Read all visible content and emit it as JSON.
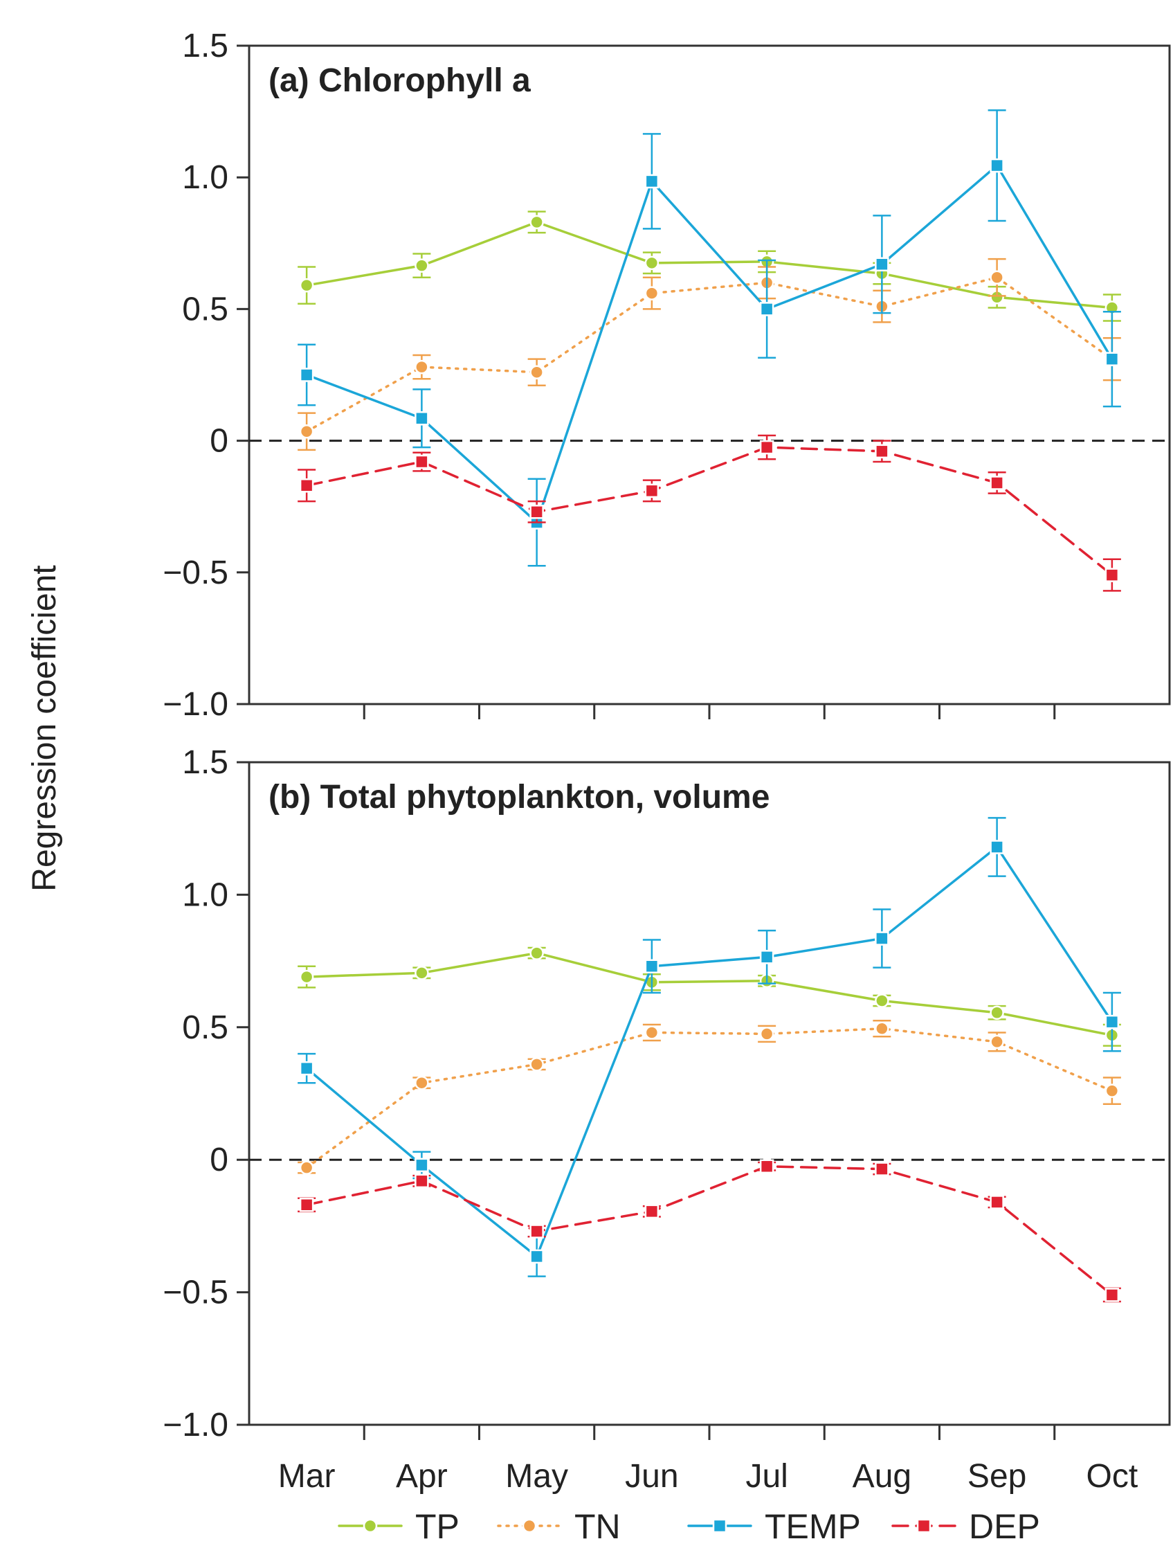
{
  "chart_data": {
    "type": "line",
    "ylabel": "Regression coefficient",
    "categories": [
      "Mar",
      "Apr",
      "May",
      "Jun",
      "Jul",
      "Aug",
      "Sep",
      "Oct"
    ],
    "ylim": [
      -1.0,
      1.5
    ],
    "yticks": [
      {
        "value": 1.5,
        "label": "1.5"
      },
      {
        "value": 1.0,
        "label": "1.0"
      },
      {
        "value": 0.5,
        "label": "0.5"
      },
      {
        "value": 0,
        "label": "0"
      },
      {
        "value": -0.5,
        "label": "−0.5"
      },
      {
        "value": -1.0,
        "label": "−1.0"
      }
    ],
    "zero_line": true,
    "legend": {
      "position": "bottom"
    },
    "series_styles": [
      {
        "name": "TP",
        "color": "#a6ce39",
        "marker": "circle",
        "dash": "solid"
      },
      {
        "name": "TN",
        "color": "#f0a04b",
        "marker": "circle",
        "dash": "dotted"
      },
      {
        "name": "TEMP",
        "color": "#1ba6d8",
        "marker": "square",
        "dash": "solid"
      },
      {
        "name": "DEP",
        "color": "#e02232",
        "marker": "square",
        "dash": "dashed"
      }
    ],
    "panels": [
      {
        "title": "(a) Chlorophyll a",
        "series": [
          {
            "name": "TP",
            "values": [
              0.59,
              0.665,
              0.83,
              0.675,
              0.68,
              0.635,
              0.545,
              0.505
            ],
            "errors": [
              0.07,
              0.045,
              0.04,
              0.04,
              0.04,
              0.04,
              0.04,
              0.05
            ]
          },
          {
            "name": "TN",
            "values": [
              0.035,
              0.28,
              0.26,
              0.56,
              0.6,
              0.51,
              0.62,
              0.31
            ],
            "errors": [
              0.07,
              0.045,
              0.05,
              0.06,
              0.06,
              0.06,
              0.07,
              0.08
            ]
          },
          {
            "name": "TEMP",
            "values": [
              0.25,
              0.085,
              -0.31,
              0.985,
              0.5,
              0.67,
              1.045,
              0.31
            ],
            "errors": [
              0.115,
              0.11,
              0.165,
              0.18,
              0.185,
              0.185,
              0.21,
              0.18
            ]
          },
          {
            "name": "DEP",
            "values": [
              -0.17,
              -0.08,
              -0.27,
              -0.19,
              -0.025,
              -0.04,
              -0.16,
              -0.51
            ],
            "errors": [
              0.06,
              0.035,
              0.04,
              0.04,
              0.045,
              0.04,
              0.04,
              0.06
            ]
          }
        ]
      },
      {
        "title": "(b) Total phytoplankton, volume",
        "series": [
          {
            "name": "TP",
            "values": [
              0.69,
              0.705,
              0.78,
              0.67,
              0.675,
              0.6,
              0.555,
              0.47
            ],
            "errors": [
              0.04,
              0.02,
              0.02,
              0.03,
              0.02,
              0.02,
              0.025,
              0.04
            ]
          },
          {
            "name": "TN",
            "values": [
              -0.03,
              0.29,
              0.36,
              0.48,
              0.475,
              0.495,
              0.445,
              0.26
            ],
            "errors": [
              0.02,
              0.02,
              0.02,
              0.03,
              0.03,
              0.03,
              0.035,
              0.05
            ]
          },
          {
            "name": "TEMP",
            "values": [
              0.345,
              -0.02,
              -0.365,
              0.73,
              0.765,
              0.835,
              1.18,
              0.52
            ],
            "errors": [
              0.055,
              0.05,
              0.075,
              0.1,
              0.1,
              0.11,
              0.11,
              0.11
            ]
          },
          {
            "name": "DEP",
            "values": [
              -0.17,
              -0.08,
              -0.27,
              -0.195,
              -0.025,
              -0.035,
              -0.16,
              -0.51
            ],
            "errors": [
              0.025,
              0.02,
              0.02,
              0.02,
              0.015,
              0.02,
              0.02,
              0.025
            ]
          }
        ]
      }
    ]
  }
}
